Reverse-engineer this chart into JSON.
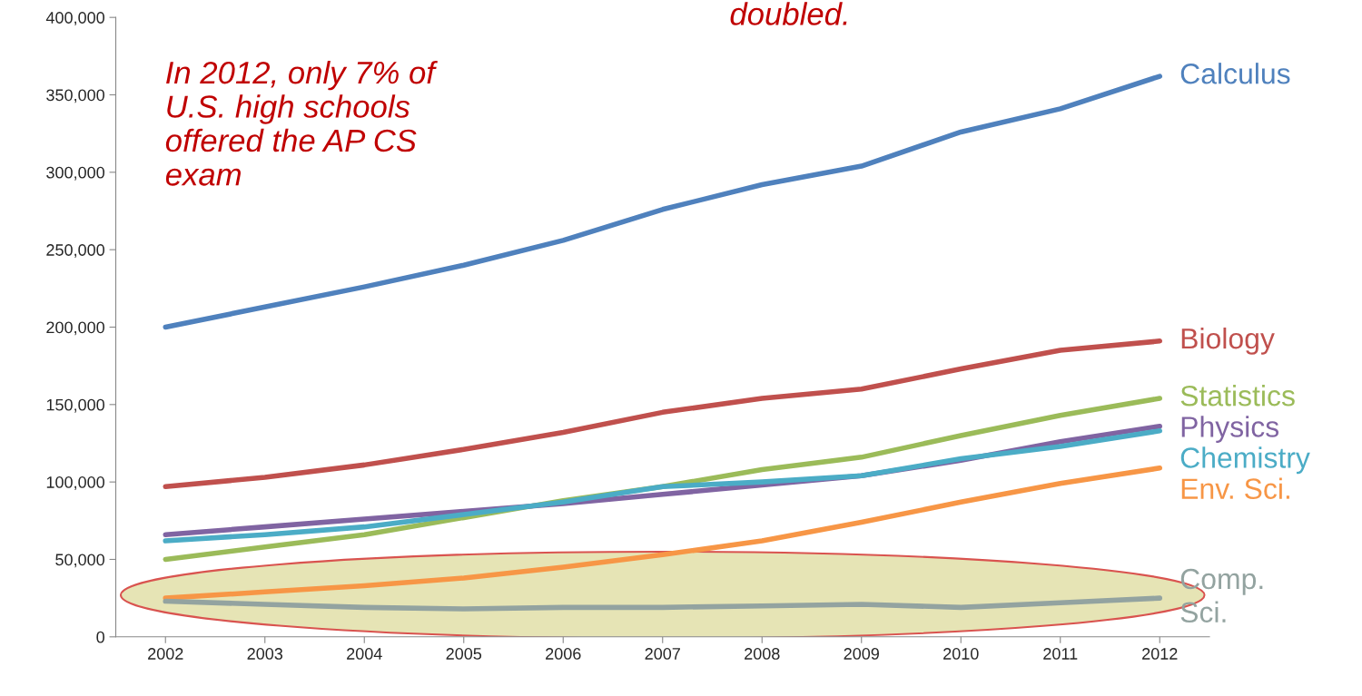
{
  "chart_data": {
    "type": "line",
    "categories": [
      "2002",
      "2003",
      "2004",
      "2005",
      "2006",
      "2007",
      "2008",
      "2009",
      "2010",
      "2011",
      "2012"
    ],
    "series": [
      {
        "name": "Calculus",
        "color": "#4f81bd",
        "values": [
          200000,
          213000,
          226000,
          240000,
          256000,
          276000,
          292000,
          304000,
          326000,
          341000,
          362000
        ]
      },
      {
        "name": "Biology",
        "color": "#c0504d",
        "values": [
          97000,
          103000,
          111000,
          121000,
          132000,
          145000,
          154000,
          160000,
          173000,
          185000,
          191000
        ]
      },
      {
        "name": "Statistics",
        "color": "#9bbb59",
        "values": [
          50000,
          58000,
          66000,
          77000,
          88000,
          97000,
          108000,
          116000,
          130000,
          143000,
          154000
        ]
      },
      {
        "name": "Physics",
        "color": "#8064a2",
        "values": [
          66000,
          71000,
          76000,
          81000,
          86000,
          92000,
          98000,
          104000,
          114000,
          126000,
          136000
        ]
      },
      {
        "name": "Chemistry",
        "color": "#4bacc6",
        "values": [
          62000,
          66000,
          71000,
          79000,
          87000,
          97000,
          100000,
          104000,
          115000,
          123000,
          133000
        ]
      },
      {
        "name": "Env. Sci.",
        "color": "#f79646",
        "values": [
          25000,
          29000,
          33000,
          38000,
          45000,
          53000,
          62000,
          74000,
          87000,
          99000,
          109000
        ]
      },
      {
        "name": "Comp.\nSci.",
        "color": "#93a3a0",
        "values": [
          23000,
          21000,
          19000,
          18000,
          19000,
          19000,
          20000,
          21000,
          19000,
          22000,
          25000
        ]
      }
    ],
    "ylim": [
      0,
      400000
    ],
    "yticks": [
      0,
      {
        "value": 50000,
        "label": "50,000"
      },
      {
        "value": 100000,
        "label": "100,000"
      },
      {
        "value": 150000,
        "label": "150,000"
      },
      {
        "value": 200000,
        "label": "200,000"
      },
      {
        "value": 250000,
        "label": "250,000"
      },
      {
        "value": 300000,
        "label": "300,000"
      },
      {
        "value": 350000,
        "label": "350,000"
      },
      {
        "value": 400000,
        "label": "400,000"
      }
    ],
    "annotations": [
      "In 2012, only 7% of\nU.S. high schools\noffered the AP CS\nexam",
      "doubled."
    ],
    "grid": false,
    "legend": false,
    "marker": "none",
    "line_style": "solid"
  }
}
